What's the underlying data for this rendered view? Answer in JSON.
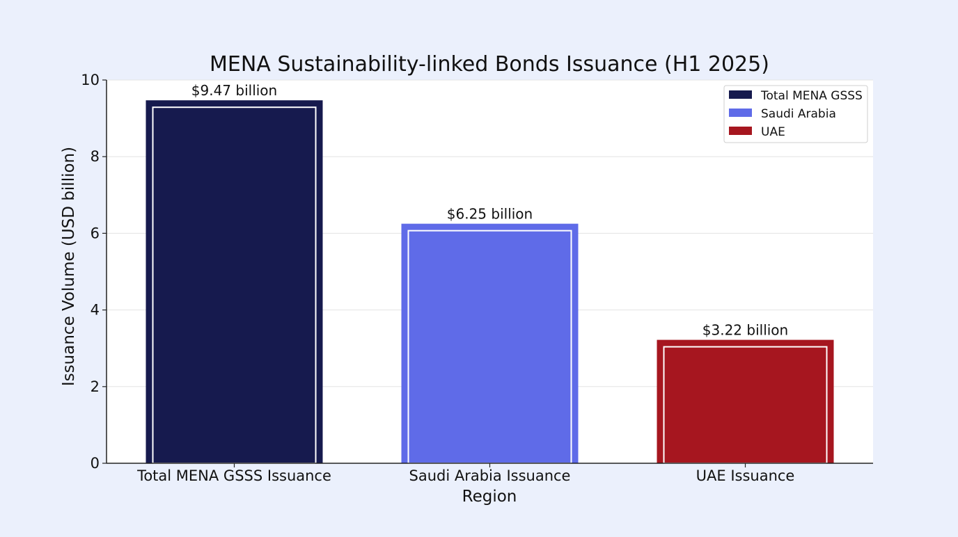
{
  "chart_data": {
    "type": "bar",
    "title": "MENA Sustainability-linked Bonds Issuance (H1 2025)",
    "xlabel": "Region",
    "ylabel": "Issuance Volume (USD billion)",
    "categories": [
      "Total MENA GSSS Issuance",
      "Saudi Arabia Issuance",
      "UAE Issuance"
    ],
    "values": [
      9.47,
      6.25,
      3.22
    ],
    "data_labels": [
      "$9.47 billion",
      "$6.25 billion",
      "$3.22 billion"
    ],
    "colors": [
      "#161a4e",
      "#5f6be8",
      "#a6161f"
    ],
    "yticks": [
      "0",
      "2",
      "4",
      "6",
      "8",
      "10"
    ],
    "ylim": [
      0,
      10
    ],
    "grid": "horizontal",
    "legend": {
      "placement": "top-right",
      "entries": [
        "Total MENA GSSS",
        "Saudi Arabia",
        "UAE"
      ]
    }
  }
}
